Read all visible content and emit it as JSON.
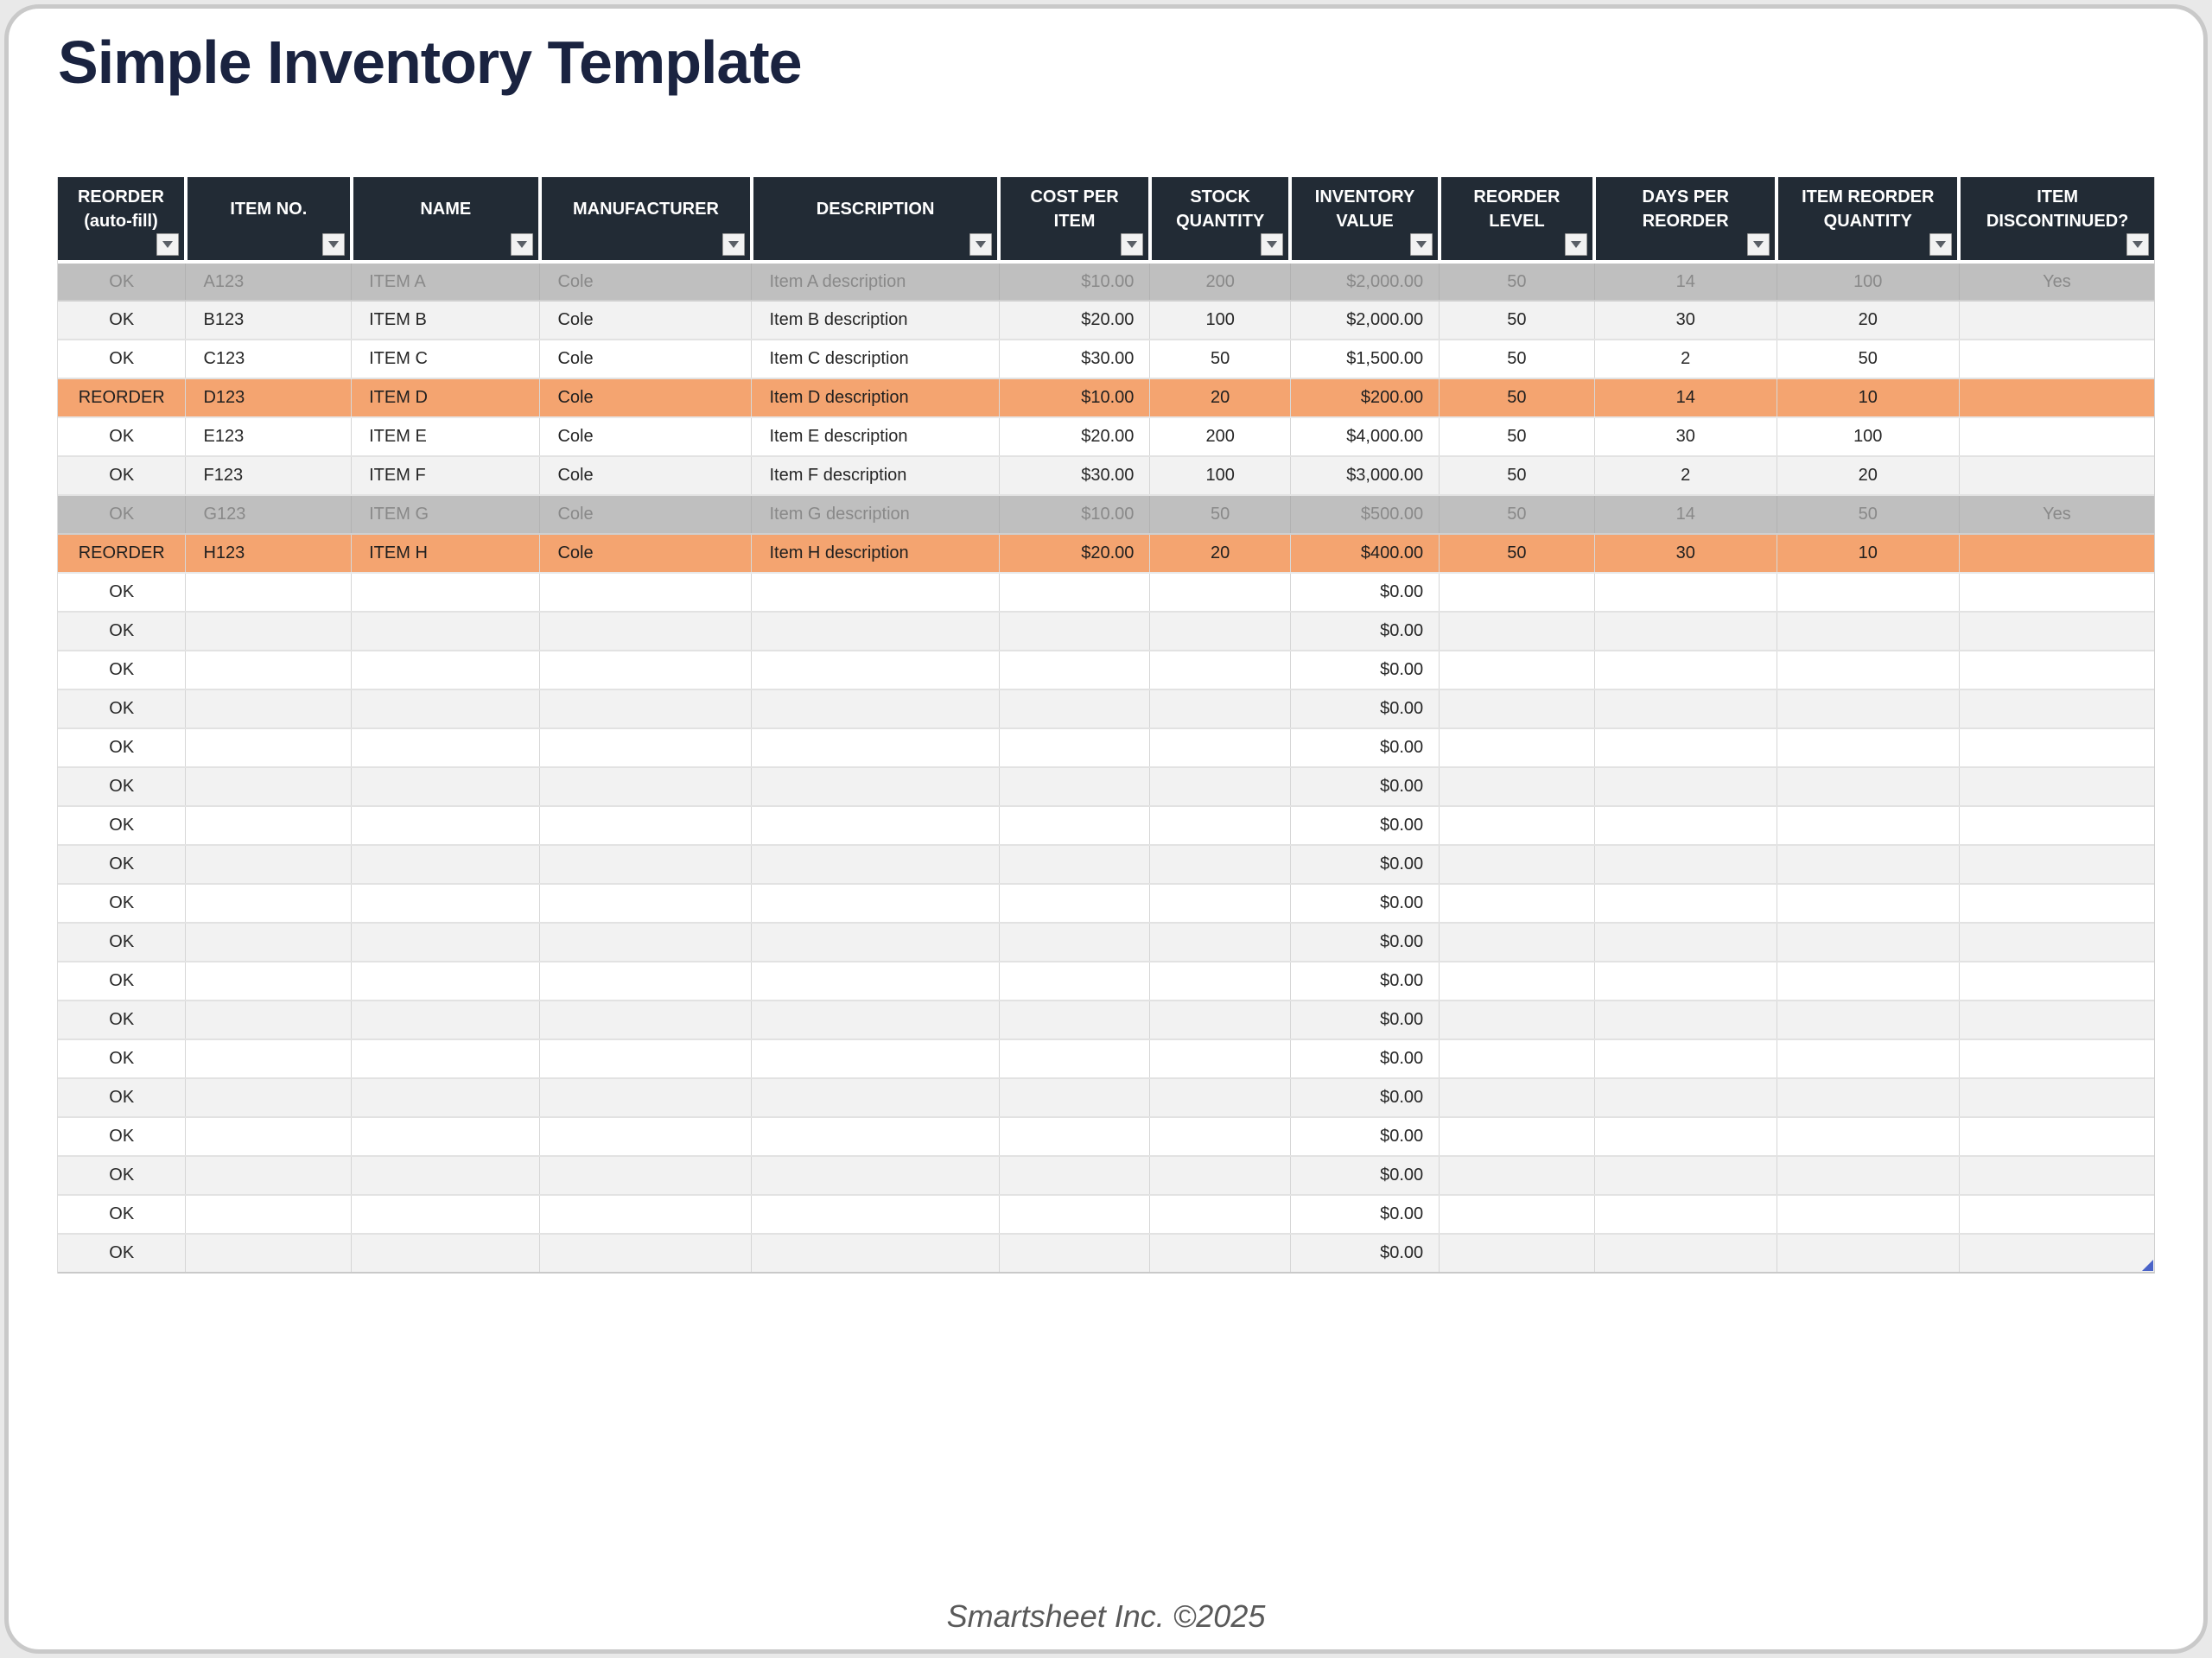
{
  "page": {
    "title": "Simple Inventory Template",
    "footer": "Smartsheet Inc. ©2025"
  },
  "colors": {
    "header_bg": "#222b35",
    "header_text": "#ffffff",
    "muted_row_bg": "#bfbfbf",
    "muted_row_text": "#898989",
    "reorder_row_bg": "#f4a470",
    "alt_row_bg": "#f2f2f2",
    "white_row_bg": "#ffffff",
    "title_text": "#1a2340",
    "footer_text": "#595959",
    "resize_handle": "#4a63c8"
  },
  "table": {
    "filter_icon": "filter-dropdown-arrow",
    "columns": [
      {
        "id": "reorder",
        "label": "REORDER (auto-fill)",
        "align": "center"
      },
      {
        "id": "item-no",
        "label": "ITEM NO.",
        "align": "left"
      },
      {
        "id": "name",
        "label": "NAME",
        "align": "left"
      },
      {
        "id": "manufacturer",
        "label": "MANUFACTURER",
        "align": "left"
      },
      {
        "id": "description",
        "label": "DESCRIPTION",
        "align": "left"
      },
      {
        "id": "cost-per-item",
        "label": "COST PER ITEM",
        "align": "right"
      },
      {
        "id": "stock-quantity",
        "label": "STOCK QUANTITY",
        "align": "center"
      },
      {
        "id": "inventory-value",
        "label": "INVENTORY VALUE",
        "align": "right"
      },
      {
        "id": "reorder-level",
        "label": "REORDER LEVEL",
        "align": "center"
      },
      {
        "id": "days-per-reorder",
        "label": "DAYS PER REORDER",
        "align": "center"
      },
      {
        "id": "item-reorder-quantity",
        "label": "ITEM REORDER QUANTITY",
        "align": "center"
      },
      {
        "id": "item-discontinued",
        "label": "ITEM DISCONTINUED?",
        "align": "center"
      }
    ],
    "rows": [
      {
        "style": "muted",
        "cells": [
          "OK",
          "A123",
          "ITEM A",
          "Cole",
          "Item A description",
          "$10.00",
          "200",
          "$2,000.00",
          "50",
          "14",
          "100",
          "Yes"
        ]
      },
      {
        "style": "alt",
        "cells": [
          "OK",
          "B123",
          "ITEM B",
          "Cole",
          "Item B description",
          "$20.00",
          "100",
          "$2,000.00",
          "50",
          "30",
          "20",
          ""
        ]
      },
      {
        "style": "white",
        "cells": [
          "OK",
          "C123",
          "ITEM C",
          "Cole",
          "Item C description",
          "$30.00",
          "50",
          "$1,500.00",
          "50",
          "2",
          "50",
          ""
        ]
      },
      {
        "style": "reorder",
        "cells": [
          "REORDER",
          "D123",
          "ITEM D",
          "Cole",
          "Item D description",
          "$10.00",
          "20",
          "$200.00",
          "50",
          "14",
          "10",
          ""
        ]
      },
      {
        "style": "white",
        "cells": [
          "OK",
          "E123",
          "ITEM E",
          "Cole",
          "Item E description",
          "$20.00",
          "200",
          "$4,000.00",
          "50",
          "30",
          "100",
          ""
        ]
      },
      {
        "style": "alt",
        "cells": [
          "OK",
          "F123",
          "ITEM F",
          "Cole",
          "Item F description",
          "$30.00",
          "100",
          "$3,000.00",
          "50",
          "2",
          "20",
          ""
        ]
      },
      {
        "style": "muted",
        "cells": [
          "OK",
          "G123",
          "ITEM G",
          "Cole",
          "Item G description",
          "$10.00",
          "50",
          "$500.00",
          "50",
          "14",
          "50",
          "Yes"
        ]
      },
      {
        "style": "reorder",
        "cells": [
          "REORDER",
          "H123",
          "ITEM H",
          "Cole",
          "Item H description",
          "$20.00",
          "20",
          "$400.00",
          "50",
          "30",
          "10",
          ""
        ]
      },
      {
        "style": "white",
        "cells": [
          "OK",
          "",
          "",
          "",
          "",
          "",
          "",
          "$0.00",
          "",
          "",
          "",
          ""
        ]
      },
      {
        "style": "alt",
        "cells": [
          "OK",
          "",
          "",
          "",
          "",
          "",
          "",
          "$0.00",
          "",
          "",
          "",
          ""
        ]
      },
      {
        "style": "white",
        "cells": [
          "OK",
          "",
          "",
          "",
          "",
          "",
          "",
          "$0.00",
          "",
          "",
          "",
          ""
        ]
      },
      {
        "style": "alt",
        "cells": [
          "OK",
          "",
          "",
          "",
          "",
          "",
          "",
          "$0.00",
          "",
          "",
          "",
          ""
        ]
      },
      {
        "style": "white",
        "cells": [
          "OK",
          "",
          "",
          "",
          "",
          "",
          "",
          "$0.00",
          "",
          "",
          "",
          ""
        ]
      },
      {
        "style": "alt",
        "cells": [
          "OK",
          "",
          "",
          "",
          "",
          "",
          "",
          "$0.00",
          "",
          "",
          "",
          ""
        ]
      },
      {
        "style": "white",
        "cells": [
          "OK",
          "",
          "",
          "",
          "",
          "",
          "",
          "$0.00",
          "",
          "",
          "",
          ""
        ]
      },
      {
        "style": "alt",
        "cells": [
          "OK",
          "",
          "",
          "",
          "",
          "",
          "",
          "$0.00",
          "",
          "",
          "",
          ""
        ]
      },
      {
        "style": "white",
        "cells": [
          "OK",
          "",
          "",
          "",
          "",
          "",
          "",
          "$0.00",
          "",
          "",
          "",
          ""
        ]
      },
      {
        "style": "alt",
        "cells": [
          "OK",
          "",
          "",
          "",
          "",
          "",
          "",
          "$0.00",
          "",
          "",
          "",
          ""
        ]
      },
      {
        "style": "white",
        "cells": [
          "OK",
          "",
          "",
          "",
          "",
          "",
          "",
          "$0.00",
          "",
          "",
          "",
          ""
        ]
      },
      {
        "style": "alt",
        "cells": [
          "OK",
          "",
          "",
          "",
          "",
          "",
          "",
          "$0.00",
          "",
          "",
          "",
          ""
        ]
      },
      {
        "style": "white",
        "cells": [
          "OK",
          "",
          "",
          "",
          "",
          "",
          "",
          "$0.00",
          "",
          "",
          "",
          ""
        ]
      },
      {
        "style": "alt",
        "cells": [
          "OK",
          "",
          "",
          "",
          "",
          "",
          "",
          "$0.00",
          "",
          "",
          "",
          ""
        ]
      },
      {
        "style": "white",
        "cells": [
          "OK",
          "",
          "",
          "",
          "",
          "",
          "",
          "$0.00",
          "",
          "",
          "",
          ""
        ]
      },
      {
        "style": "alt",
        "cells": [
          "OK",
          "",
          "",
          "",
          "",
          "",
          "",
          "$0.00",
          "",
          "",
          "",
          ""
        ]
      },
      {
        "style": "white",
        "cells": [
          "OK",
          "",
          "",
          "",
          "",
          "",
          "",
          "$0.00",
          "",
          "",
          "",
          ""
        ]
      },
      {
        "style": "alt",
        "cells": [
          "OK",
          "",
          "",
          "",
          "",
          "",
          "",
          "$0.00",
          "",
          "",
          "",
          ""
        ]
      }
    ]
  }
}
